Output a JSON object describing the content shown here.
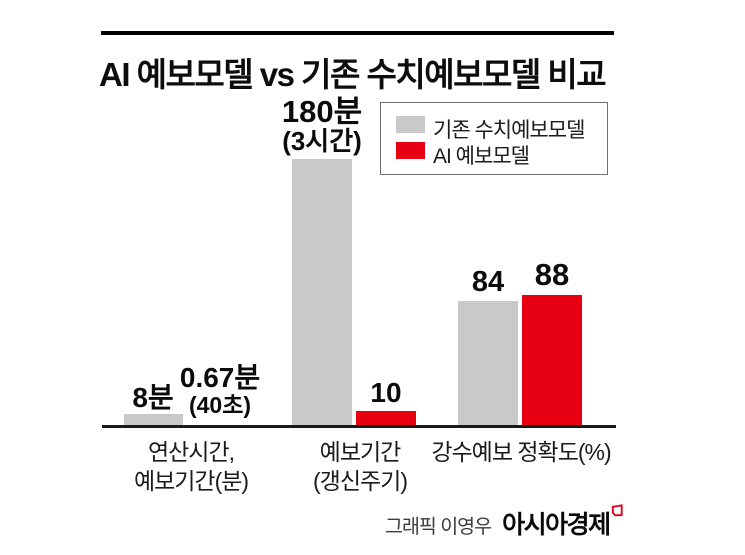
{
  "header": {
    "title": "AI 예보모델 vs 기존 수치예보모델 비교"
  },
  "legend": {
    "items": [
      {
        "label": "기존 수치예보모델",
        "color": "#c9c9c9"
      },
      {
        "label": "AI 예보모델",
        "color": "#e60012"
      }
    ]
  },
  "value_labels": {
    "g1_gray": {
      "main": "8분"
    },
    "g1_red": {
      "main": "0.67분",
      "sub": "(40초)"
    },
    "g2_gray": {
      "main": "180분",
      "sub": "(3시간)"
    },
    "g2_red": {
      "main": "10"
    },
    "g3_gray": {
      "main": "84"
    },
    "g3_red": {
      "main": "88"
    }
  },
  "categories": [
    {
      "line1": "연산시간,",
      "line2": "예보기간(분)"
    },
    {
      "line1": "예보기간",
      "line2": "(갱신주기)"
    },
    {
      "line1": "강수예보 정확도(%)"
    }
  ],
  "footer": {
    "credit": "그래픽 이영우",
    "brand": "아시아경제"
  },
  "colors": {
    "existing_model": "#c9c9c9",
    "ai_model": "#e60012",
    "axis": "#191919"
  },
  "chart_data": {
    "type": "bar",
    "title": "AI 예보모델 vs 기존 수치예보모델 비교",
    "categories": [
      "연산시간, 예보기간(분)",
      "예보기간 (갱신주기)",
      "강수예보 정확도(%)"
    ],
    "series": [
      {
        "name": "기존 수치예보모델",
        "color": "#c9c9c9",
        "values": [
          8,
          180,
          84
        ],
        "value_labels": [
          "8분",
          "180분 (3시간)",
          "84"
        ]
      },
      {
        "name": "AI 예보모델",
        "color": "#e60012",
        "values": [
          0.67,
          10,
          88
        ],
        "value_labels": [
          "0.67분 (40초)",
          "10",
          "88"
        ]
      }
    ],
    "ylim": [
      0,
      180
    ],
    "grid": false,
    "legend_position": "top-right"
  }
}
